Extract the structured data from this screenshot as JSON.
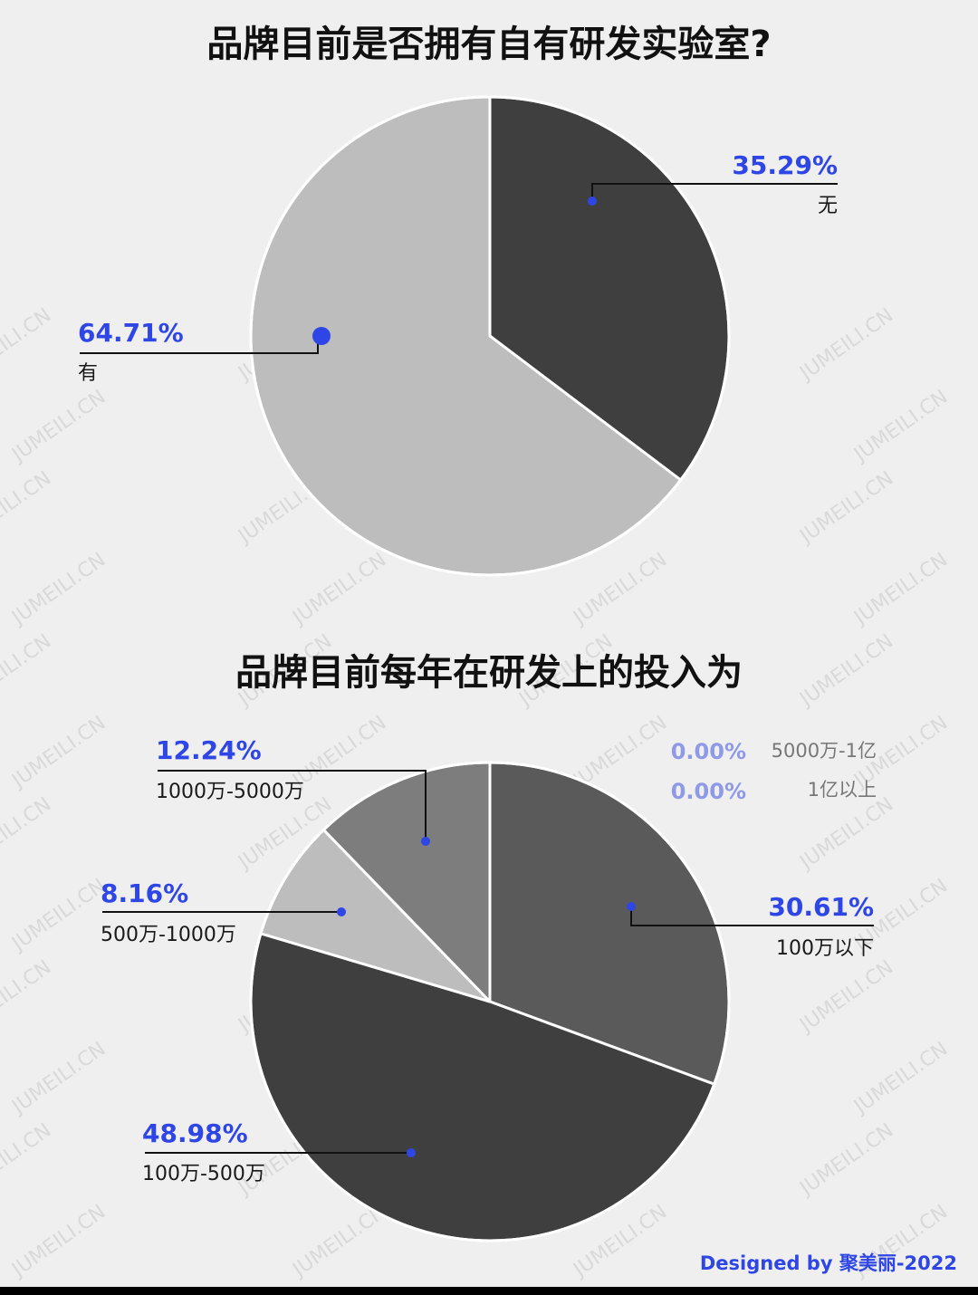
{
  "watermark": "JUMEILI.CN",
  "credit": "Designed by 聚美丽-2022",
  "colors": {
    "accent": "#2e46e6",
    "accent_faint": "#8e9ae6",
    "background": "#efefef"
  },
  "chart_data": [
    {
      "type": "pie",
      "title": "品牌目前是否拥有自有研发实验室?",
      "slices": [
        {
          "label": "无",
          "value": 35.29,
          "display": "35.29%",
          "color": "#3f3f3f"
        },
        {
          "label": "有",
          "value": 64.71,
          "display": "64.71%",
          "color": "#bdbdbd"
        }
      ]
    },
    {
      "type": "pie",
      "title": "品牌目前每年在研发上的投入为",
      "slices": [
        {
          "label": "100万以下",
          "value": 30.61,
          "display": "30.61%",
          "color": "#5a5a5a"
        },
        {
          "label": "100万-500万",
          "value": 48.98,
          "display": "48.98%",
          "color": "#3f3f3f"
        },
        {
          "label": "500万-1000万",
          "value": 8.16,
          "display": "8.16%",
          "color": "#bdbdbd"
        },
        {
          "label": "1000万-5000万",
          "value": 12.24,
          "display": "12.24%",
          "color": "#7d7d7d"
        },
        {
          "label": "5000万-1亿",
          "value": 0.0,
          "display": "0.00%",
          "color": "#ffffff"
        },
        {
          "label": "1亿以上",
          "value": 0.0,
          "display": "0.00%",
          "color": "#ffffff"
        }
      ]
    }
  ]
}
